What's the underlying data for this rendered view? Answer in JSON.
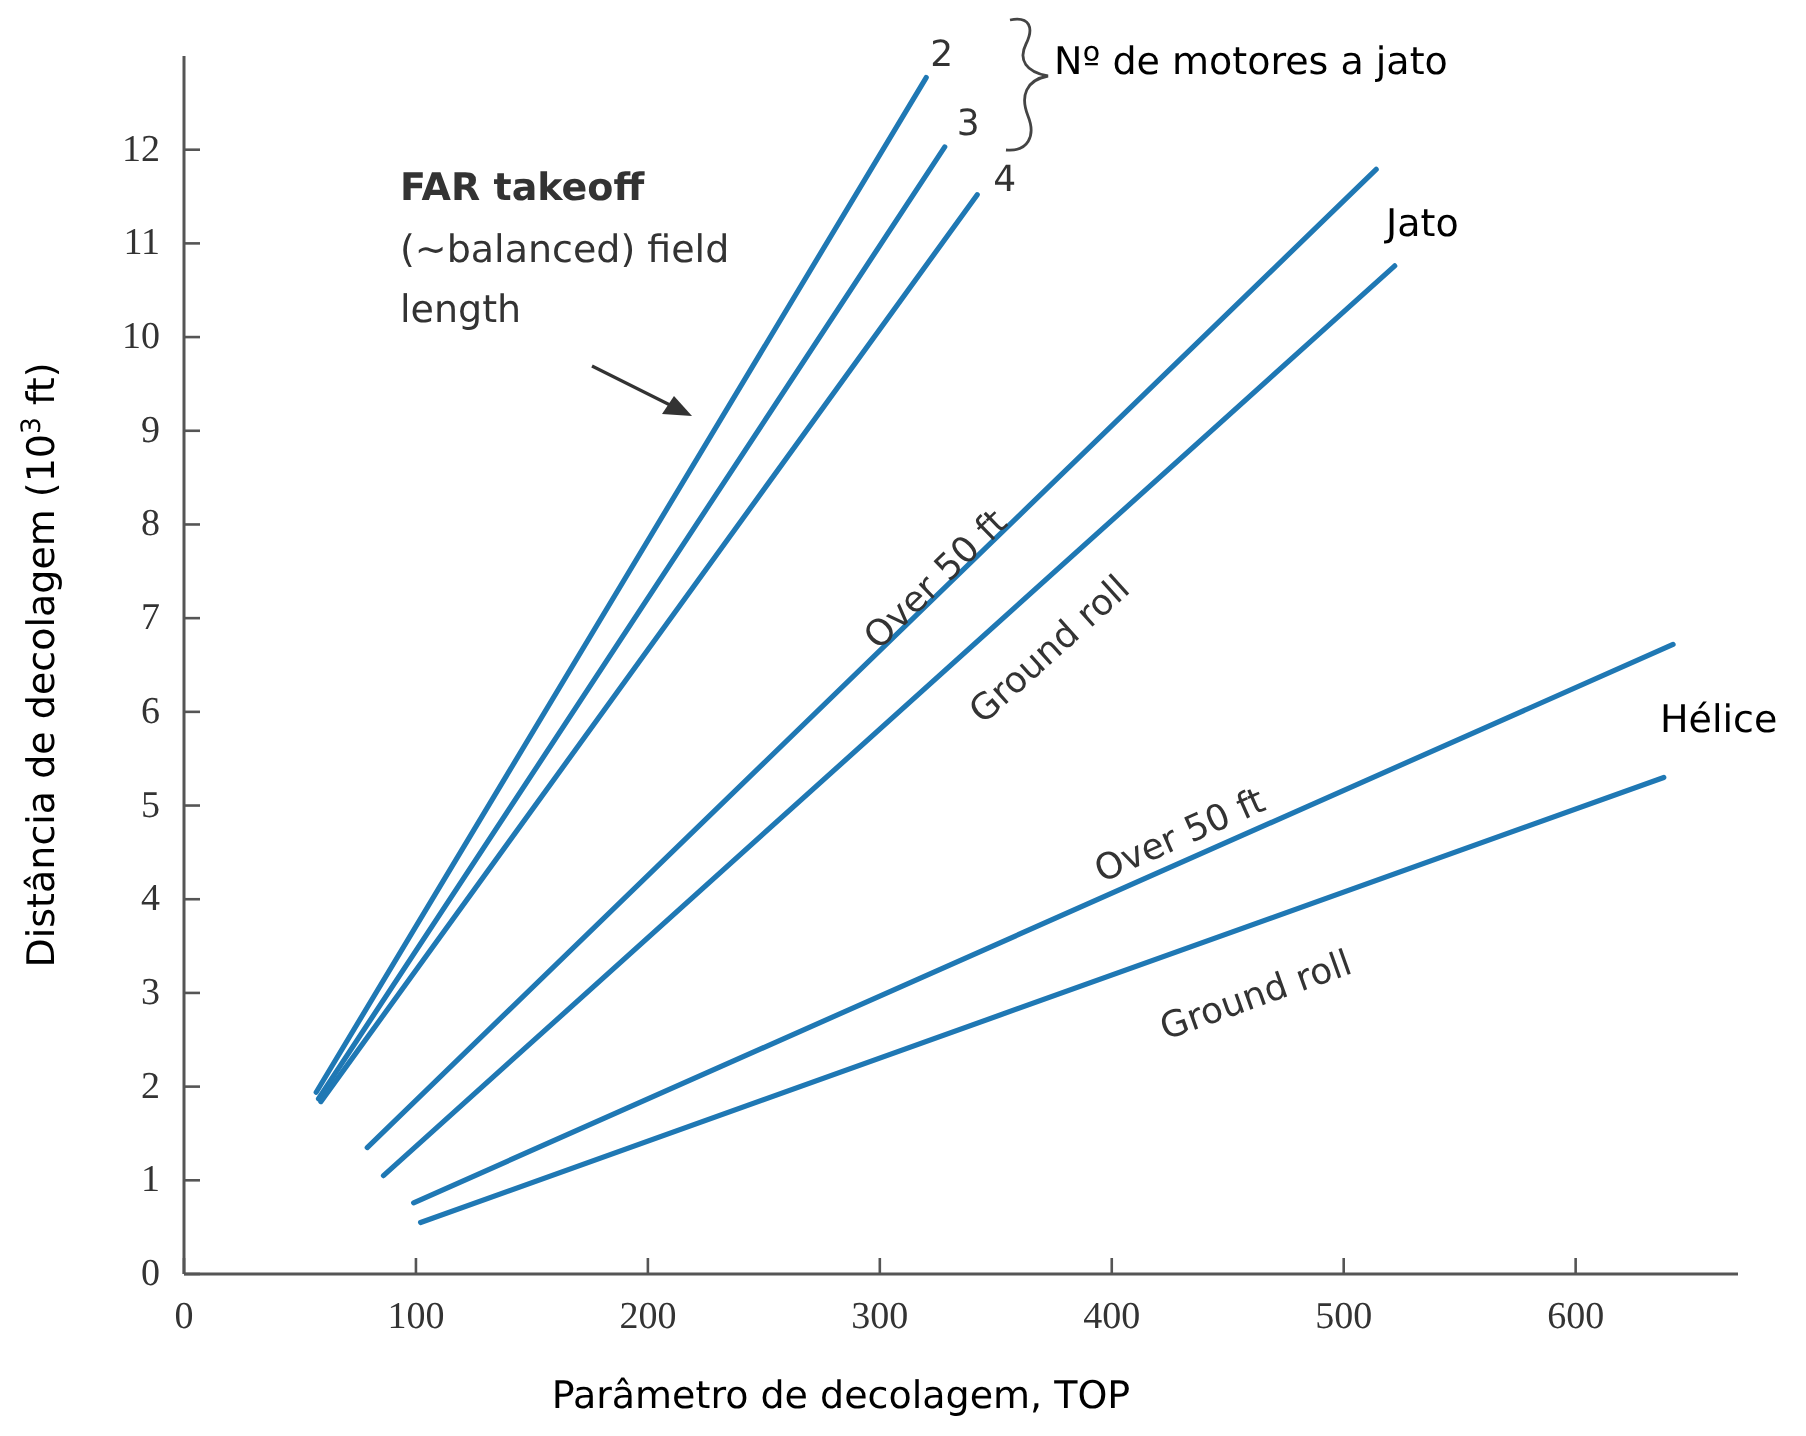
{
  "chart_data": {
    "type": "line",
    "xlabel": "Parâmetro de decolagem, TOP",
    "ylabel": "Distância de decolagem (10$^{3}$ ft)",
    "xlim": [
      0,
      670
    ],
    "ylim": [
      0,
      13
    ],
    "xticks": [
      0,
      100,
      200,
      300,
      400,
      500,
      600
    ],
    "yticks": [
      0,
      1,
      2,
      3,
      4,
      5,
      6,
      7,
      8,
      9,
      10,
      11,
      12
    ],
    "grid": false,
    "marker": "none",
    "line_style": "solid",
    "series": [
      {
        "color": "#1f78b4",
        "x": [
          57,
          320
        ],
        "values": [
          1.94,
          12.77
        ]
      },
      {
        "color": "#1f78b4",
        "x": [
          58,
          328
        ],
        "values": [
          1.87,
          12.03
        ]
      },
      {
        "color": "#1f78b4",
        "x": [
          59,
          342
        ],
        "values": [
          1.84,
          11.52
        ]
      },
      {
        "color": "#1f78b4",
        "x": [
          79,
          514
        ],
        "values": [
          1.35,
          11.79
        ]
      },
      {
        "color": "#1f78b4",
        "x": [
          86,
          522
        ],
        "values": [
          1.05,
          10.76
        ]
      },
      {
        "color": "#1f78b4",
        "x": [
          99,
          642
        ],
        "values": [
          0.76,
          6.72
        ]
      },
      {
        "color": "#1f78b4",
        "x": [
          102,
          638
        ],
        "values": [
          0.55,
          5.3
        ]
      }
    ],
    "annotations": [
      {
        "text": "2",
        "x": 320,
        "y": 12.77
      },
      {
        "text": "3",
        "x": 328,
        "y": 12.03
      },
      {
        "text": "4",
        "x": 342,
        "y": 11.52
      },
      "Nº de motores a jato",
      "FAR takeoff",
      "(~balanced) field length",
      "Jato",
      "Hélice",
      "Over 50 ft",
      "Ground roll",
      "Over 50 ft",
      "Ground roll"
    ]
  }
}
